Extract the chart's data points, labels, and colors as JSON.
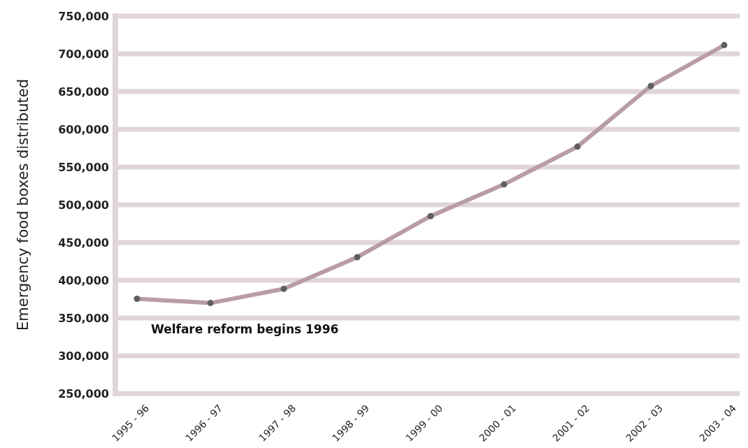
{
  "chart_data": {
    "type": "line",
    "ylabel": "Emergency food boxes distributed",
    "categories": [
      "1995 - 96",
      "1996 - 97",
      "1997 - 98",
      "1998 - 99",
      "1999 - 00",
      "2000 - 01",
      "2001 - 02",
      "2002 - 03",
      "2003 - 04"
    ],
    "series": [
      {
        "color": "#b89ca6",
        "values": [
          375500,
          369800,
          388700,
          430600,
          485000,
          527000,
          577000,
          657400,
          711500
        ]
      }
    ],
    "marker": "circle",
    "grid": "y",
    "ylim": [
      250000,
      750000
    ],
    "yticks": [
      {
        "value": 250000,
        "label": "250,000"
      },
      {
        "value": 300000,
        "label": "300,000"
      },
      {
        "value": 350000,
        "label": "350,000"
      },
      {
        "value": 400000,
        "label": "400,000"
      },
      {
        "value": 450000,
        "label": "450,000"
      },
      {
        "value": 500000,
        "label": "500,000"
      },
      {
        "value": 550000,
        "label": "550,000"
      },
      {
        "value": 600000,
        "label": "600,000"
      },
      {
        "value": 650000,
        "label": "650,000"
      },
      {
        "value": 700000,
        "label": "700,000"
      },
      {
        "value": 750000,
        "label": "750,000"
      }
    ],
    "annotations": [
      "Welfare reform begins 1996"
    ]
  }
}
